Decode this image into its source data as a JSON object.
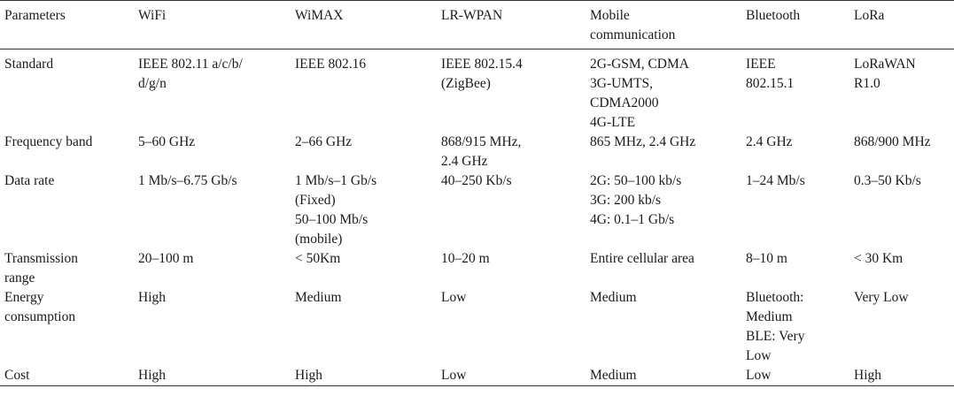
{
  "table": {
    "headers": [
      "Parameters",
      "WiFi",
      "WiMAX",
      "LR-WPAN",
      "Mobile communication",
      "Bluetooth",
      "LoRa"
    ],
    "header_lines": [
      [
        "Parameters"
      ],
      [
        "WiFi"
      ],
      [
        "WiMAX"
      ],
      [
        "LR-WPAN"
      ],
      [
        "Mobile",
        "communication"
      ],
      [
        "Bluetooth"
      ],
      [
        "LoRa"
      ]
    ],
    "rows": [
      {
        "name": "standard",
        "cells": [
          [
            "Standard"
          ],
          [
            "IEEE 802.11 a/c/b/",
            "d/g/n"
          ],
          [
            "IEEE 802.16"
          ],
          [
            "IEEE 802.15.4",
            "(ZigBee)"
          ],
          [
            "2G-GSM, CDMA",
            "3G-UMTS,",
            "CDMA2000",
            "4G-LTE"
          ],
          [
            "IEEE",
            "802.15.1"
          ],
          [
            "LoRaWAN",
            "R1.0"
          ]
        ]
      },
      {
        "name": "frequency-band",
        "cells": [
          [
            "Frequency band"
          ],
          [
            "5–60 GHz"
          ],
          [
            "2–66 GHz"
          ],
          [
            "868/915 MHz,",
            "2.4 GHz"
          ],
          [
            "865 MHz, 2.4 GHz"
          ],
          [
            "2.4 GHz"
          ],
          [
            "868/900 MHz"
          ]
        ]
      },
      {
        "name": "data-rate",
        "cells": [
          [
            "Data rate"
          ],
          [
            "1 Mb/s–6.75 Gb/s"
          ],
          [
            "1 Mb/s–1 Gb/s",
            "(Fixed)",
            "50–100 Mb/s",
            "(mobile)"
          ],
          [
            "40–250 Kb/s"
          ],
          [
            "2G: 50–100 kb/s",
            "3G: 200 kb/s",
            "4G: 0.1–1 Gb/s"
          ],
          [
            "1–24 Mb/s"
          ],
          [
            "0.3–50 Kb/s"
          ]
        ]
      },
      {
        "name": "transmission-range",
        "cells": [
          [
            "Transmission",
            "range"
          ],
          [
            "20–100 m"
          ],
          [
            "< 50Km"
          ],
          [
            "10–20 m"
          ],
          [
            "Entire cellular area"
          ],
          [
            "8–10 m"
          ],
          [
            "< 30 Km"
          ]
        ]
      },
      {
        "name": "energy-consumption",
        "cells": [
          [
            "Energy",
            "consumption"
          ],
          [
            "High"
          ],
          [
            "Medium"
          ],
          [
            "Low"
          ],
          [
            "Medium"
          ],
          [
            "Bluetooth:",
            "Medium",
            "BLE: Very",
            "Low"
          ],
          [
            "Very Low"
          ]
        ]
      },
      {
        "name": "cost",
        "cells": [
          [
            "Cost"
          ],
          [
            "High"
          ],
          [
            "High"
          ],
          [
            "Low"
          ],
          [
            "Medium"
          ],
          [
            "Low"
          ],
          [
            "High"
          ]
        ]
      }
    ]
  }
}
